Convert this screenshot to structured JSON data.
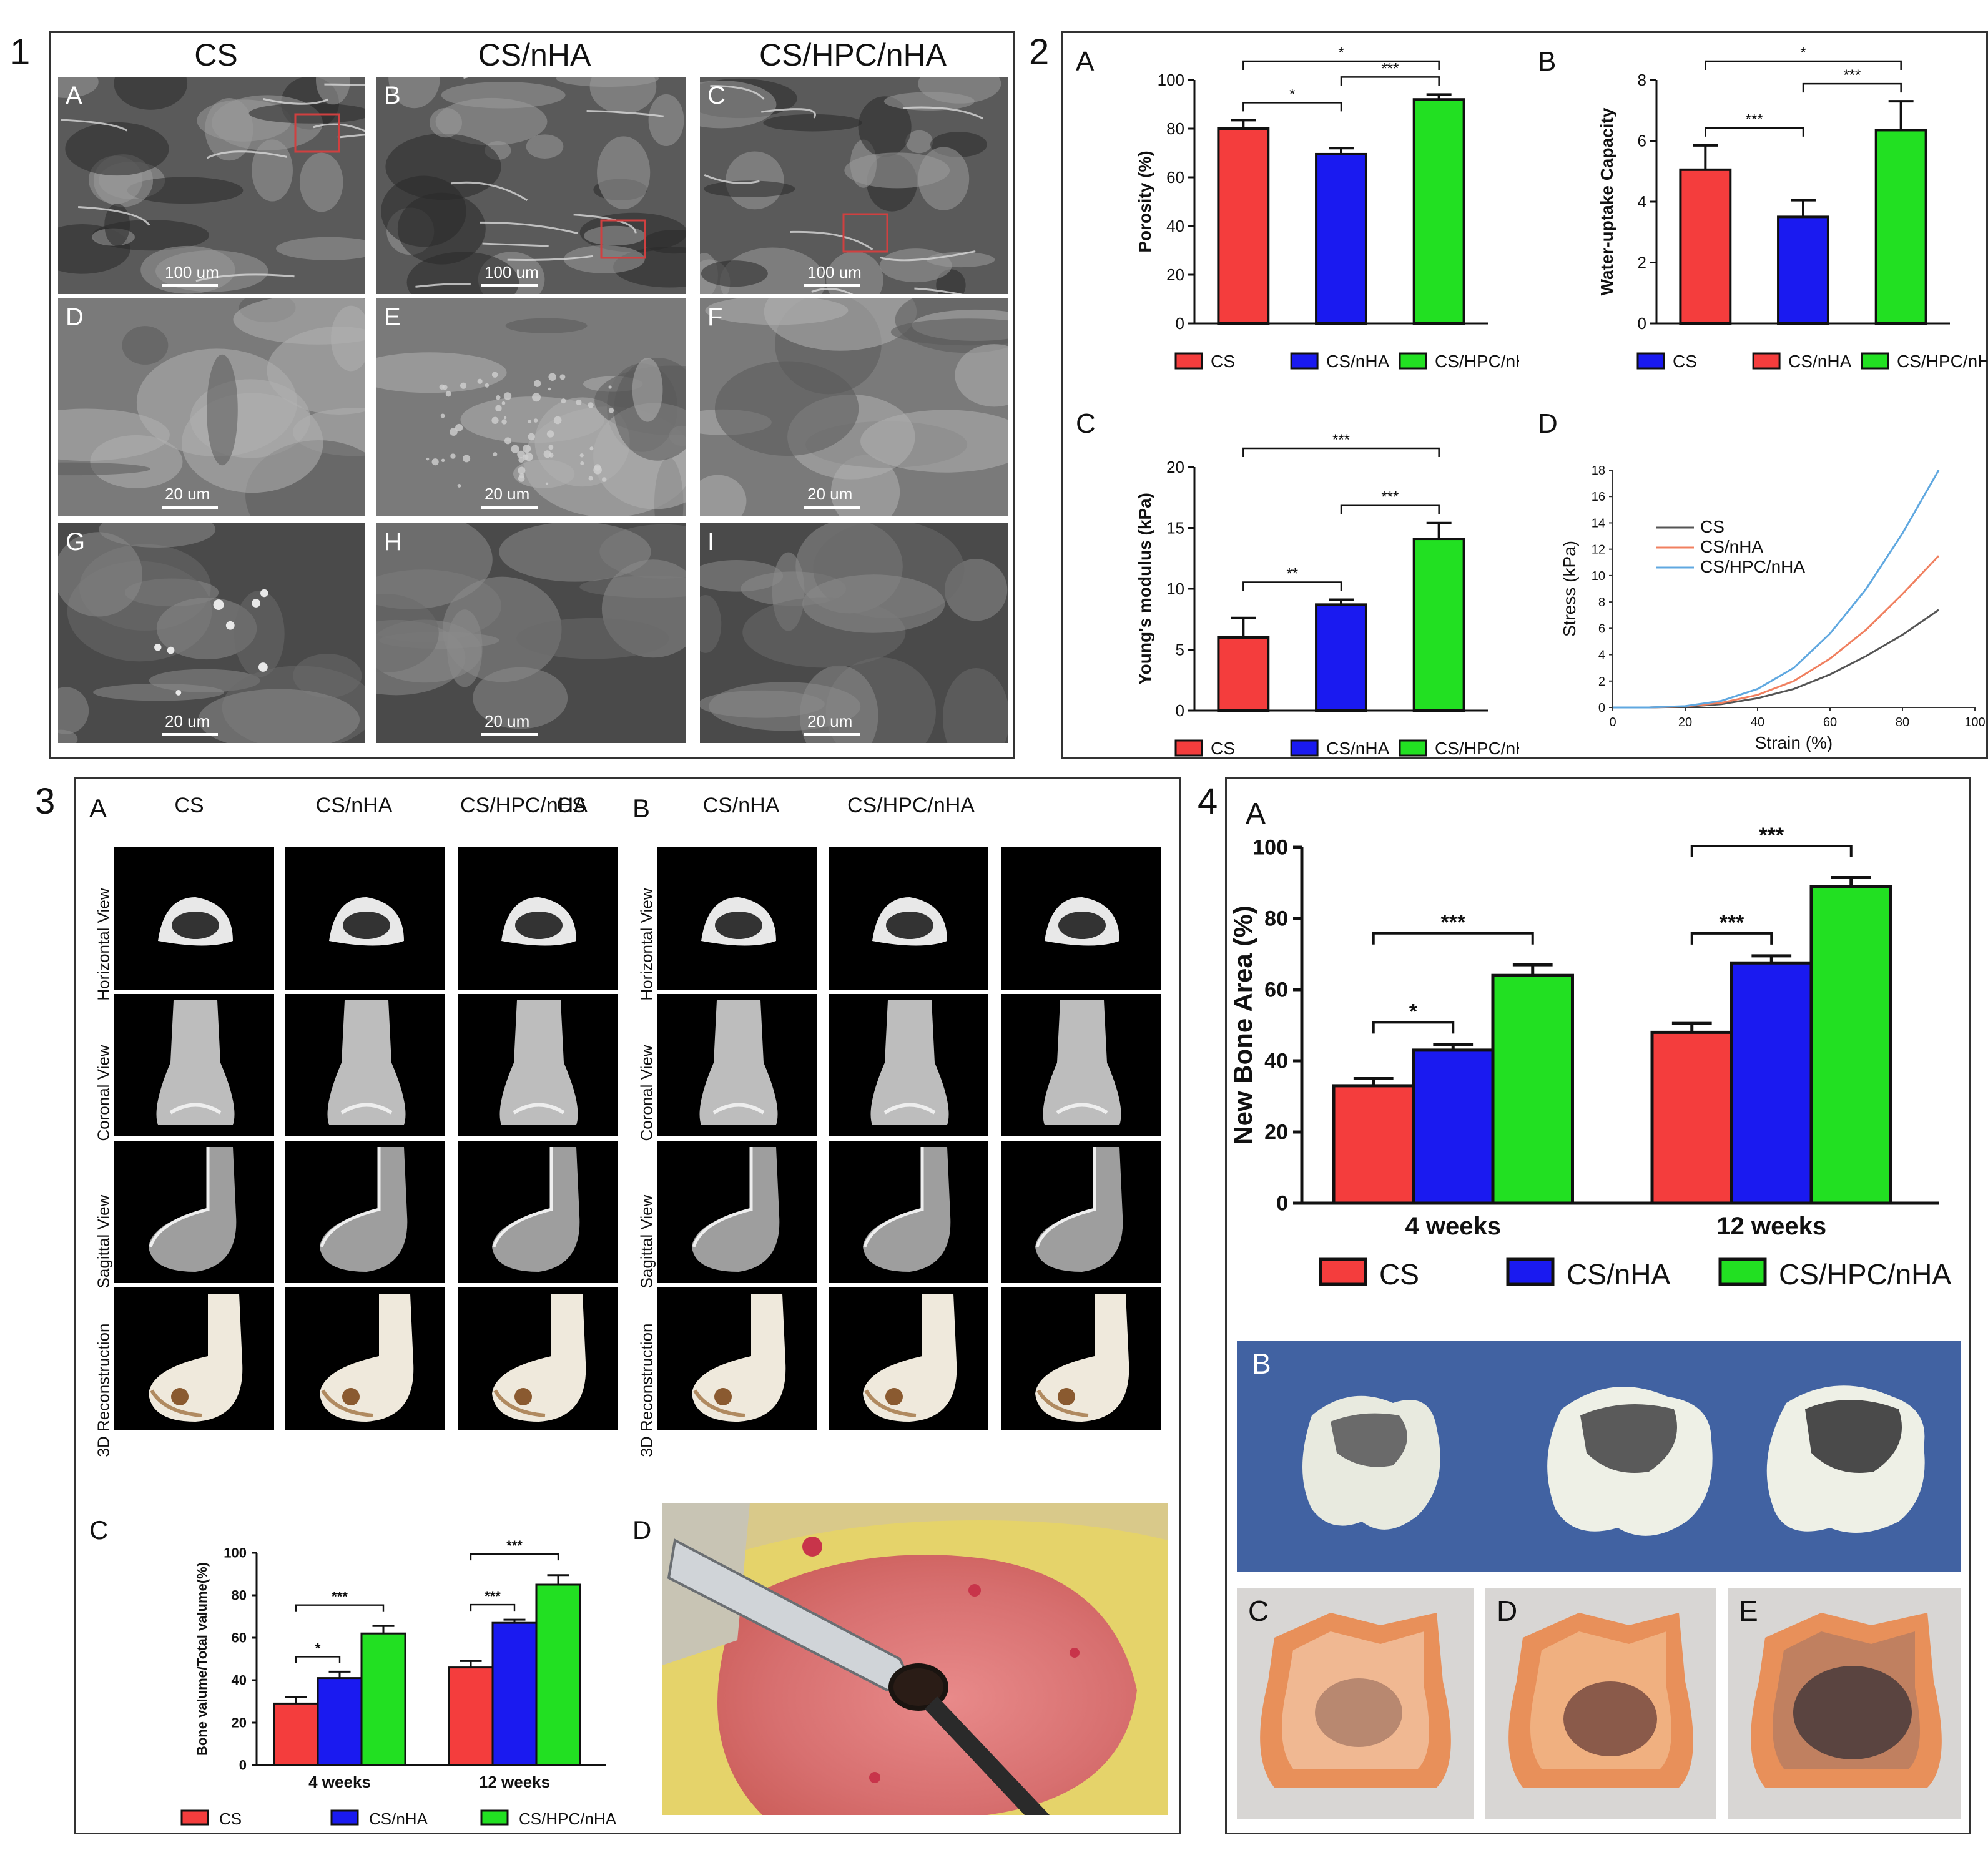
{
  "colors": {
    "cs": "#f43d3d",
    "nha": "#1a1af0",
    "hpc": "#22e022",
    "cs_line": "#555555",
    "nha_line": "#f08060",
    "hpc_line": "#60a8e0"
  },
  "p1": {
    "num": "1",
    "cols": [
      "CS",
      "CS/nHA",
      "CS/HPC/nHA"
    ],
    "letters": [
      "A",
      "B",
      "C",
      "D",
      "E",
      "F",
      "G",
      "H",
      "I"
    ],
    "scale_100": "100 um",
    "scale_20": "20 um"
  },
  "p2": {
    "num": "2",
    "legend": [
      "CS",
      "CS/nHA",
      "CS/HPC/nHA"
    ]
  },
  "p3": {
    "num": "3",
    "A": "A",
    "B": "B",
    "C": "C",
    "D": "D",
    "cols": [
      "CS",
      "CS/nHA",
      "CS/HPC/nHA"
    ],
    "views": [
      "Horizontal View",
      "Coronal View",
      "Sagittal View",
      "3D Reconstruction"
    ],
    "legend": [
      "CS",
      "CS/nHA",
      "CS/HPC/nHA"
    ]
  },
  "p4": {
    "num": "4",
    "B": "B",
    "C": "C",
    "D": "D",
    "E": "E"
  },
  "chart_data": [
    {
      "id": "2A",
      "type": "bar",
      "letter": "A",
      "categories": [
        "CS",
        "CS/nHA",
        "CS/HPC/nHA"
      ],
      "values": [
        80,
        69.5,
        92
      ],
      "errors": [
        3.5,
        2.5,
        2
      ],
      "ylabel": "Porosity (%)",
      "ylim": [
        0,
        100
      ],
      "yticks": [
        0,
        20,
        40,
        60,
        80,
        100
      ],
      "significance": [
        {
          "from": 0,
          "to": 1,
          "label": "*"
        },
        {
          "from": 1,
          "to": 2,
          "label": "***"
        },
        {
          "from": 0,
          "to": 2,
          "label": "*"
        }
      ]
    },
    {
      "id": "2B",
      "type": "bar",
      "letter": "B",
      "categories": [
        "CS",
        "CS/nHA",
        "CS/HPC/nHA"
      ],
      "values": [
        5.05,
        3.5,
        6.35
      ],
      "errors": [
        0.8,
        0.55,
        0.95
      ],
      "ylabel": "Water-uptake Capacity",
      "ylim": [
        0,
        8
      ],
      "yticks": [
        0,
        2,
        4,
        6,
        8
      ],
      "legend": [
        "CS",
        "CS/nHA",
        "CS/HPC/nHA"
      ],
      "significance": [
        {
          "from": 0,
          "to": 1,
          "label": "***"
        },
        {
          "from": 1,
          "to": 2,
          "label": "***"
        },
        {
          "from": 0,
          "to": 2,
          "label": "*"
        }
      ]
    },
    {
      "id": "2C",
      "type": "bar",
      "letter": "C",
      "categories": [
        "CS",
        "CS/nHA",
        "CS/HPC/nHA"
      ],
      "values": [
        6,
        8.7,
        14.1
      ],
      "errors": [
        1.6,
        0.4,
        1.3
      ],
      "ylabel": "Young's modulus (kPa)",
      "ylim": [
        0,
        20
      ],
      "yticks": [
        0,
        5,
        10,
        15,
        20
      ],
      "significance": [
        {
          "from": 0,
          "to": 1,
          "label": "**"
        },
        {
          "from": 1,
          "to": 2,
          "label": "***"
        },
        {
          "from": 0,
          "to": 2,
          "label": "***"
        }
      ]
    },
    {
      "id": "2D",
      "type": "line",
      "letter": "D",
      "xlabel": "Strain (%)",
      "ylabel": "Stress (kPa)",
      "xlim": [
        0,
        100
      ],
      "ylim": [
        0,
        18
      ],
      "xticks": [
        0,
        20,
        40,
        60,
        80,
        100
      ],
      "yticks": [
        0,
        2,
        4,
        6,
        8,
        10,
        12,
        14,
        16,
        18
      ],
      "series": [
        {
          "name": "CS",
          "x": [
            0,
            10,
            20,
            30,
            40,
            50,
            60,
            70,
            80,
            90
          ],
          "y": [
            0,
            0,
            0.05,
            0.25,
            0.7,
            1.4,
            2.5,
            3.9,
            5.5,
            7.4
          ]
        },
        {
          "name": "CS/nHA",
          "x": [
            0,
            10,
            20,
            30,
            40,
            50,
            60,
            70,
            80,
            90
          ],
          "y": [
            0,
            0,
            0.08,
            0.35,
            0.95,
            2,
            3.7,
            5.9,
            8.6,
            11.5
          ]
        },
        {
          "name": "CS/HPC/nHA",
          "x": [
            0,
            10,
            20,
            30,
            40,
            50,
            60,
            70,
            80,
            90
          ],
          "y": [
            0,
            0,
            0.1,
            0.5,
            1.4,
            3,
            5.6,
            9,
            13.2,
            18
          ]
        }
      ]
    },
    {
      "id": "3C",
      "type": "bar",
      "letter": "C",
      "groups": [
        "4 weeks",
        "12 weeks"
      ],
      "ylabel": "Bone valume/Total valume(%)",
      "ylim": [
        0,
        100
      ],
      "yticks": [
        0,
        20,
        40,
        60,
        80,
        100
      ],
      "series": [
        {
          "name": "CS",
          "values": [
            29,
            46
          ],
          "errors": [
            3,
            3
          ]
        },
        {
          "name": "CS/nHA",
          "values": [
            41,
            67
          ],
          "errors": [
            3,
            1.5
          ]
        },
        {
          "name": "CS/HPC/nHA",
          "values": [
            62,
            85
          ],
          "errors": [
            3.5,
            4.5
          ]
        }
      ],
      "significance": [
        {
          "group": 0,
          "from": 0,
          "to": 1,
          "label": "*"
        },
        {
          "group": 0,
          "from": 0,
          "to": 2,
          "label": "***"
        },
        {
          "group": 1,
          "from": 0,
          "to": 1,
          "label": "***"
        },
        {
          "group": 1,
          "from": 0,
          "to": 2,
          "label": "***"
        }
      ]
    },
    {
      "id": "4A",
      "type": "bar",
      "letter": "A",
      "groups": [
        "4 weeks",
        "12 weeks"
      ],
      "ylabel": "New Bone Area (%)",
      "ylim": [
        0,
        100
      ],
      "yticks": [
        0,
        20,
        40,
        60,
        80,
        100
      ],
      "series": [
        {
          "name": "CS",
          "values": [
            33,
            48
          ],
          "errors": [
            2,
            2.5
          ]
        },
        {
          "name": "CS/nHA",
          "values": [
            43,
            67.5
          ],
          "errors": [
            1.5,
            2
          ]
        },
        {
          "name": "CS/HPC/nHA",
          "values": [
            64,
            89
          ],
          "errors": [
            3,
            2.5
          ]
        }
      ],
      "legend": [
        "CS",
        "CS/nHA",
        "CS/HPC/nHA"
      ],
      "significance": [
        {
          "group": 0,
          "from": 0,
          "to": 1,
          "label": "*"
        },
        {
          "group": 0,
          "from": 0,
          "to": 2,
          "label": "***"
        },
        {
          "group": 1,
          "from": 0,
          "to": 1,
          "label": "***"
        },
        {
          "group": 1,
          "from": 0,
          "to": 2,
          "label": "***"
        }
      ]
    }
  ]
}
